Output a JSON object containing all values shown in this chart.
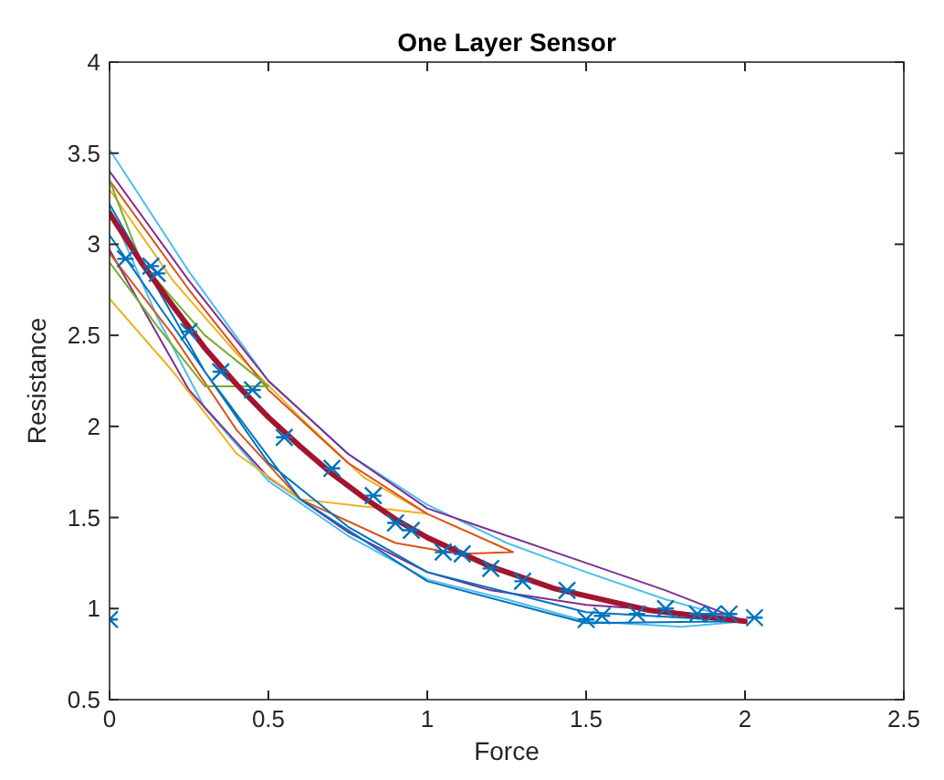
{
  "chart_data": {
    "type": "line",
    "title": "One Layer Sensor",
    "xlabel": "Force",
    "ylabel": "Resistance",
    "xlim": [
      0,
      2.5
    ],
    "xticks": [
      0,
      0.5,
      1,
      1.5,
      2,
      2.5
    ],
    "ylim": [
      0.5,
      4
    ],
    "yticks": [
      0.5,
      1,
      1.5,
      2,
      2.5,
      3,
      3.5,
      4
    ],
    "grid": false,
    "series": [
      {
        "color": "#4dbeee",
        "x": [
          0,
          0.25,
          0.5,
          0.75,
          1,
          1.25,
          1.5,
          1.75,
          2,
          1.8,
          1.5,
          1.25,
          1,
          0.75,
          0.5,
          0.3,
          0.15,
          0
        ],
        "values": [
          3.52,
          2.85,
          2.25,
          1.85,
          1.57,
          1.36,
          1.2,
          1.05,
          0.93,
          0.9,
          0.93,
          1.05,
          1.16,
          1.4,
          1.7,
          2.1,
          2.6,
          3.2
        ]
      },
      {
        "color": "#7e2f8e",
        "x": [
          0,
          0.25,
          0.5,
          0.75,
          1,
          1.5,
          1.75,
          2,
          1.75,
          1.5,
          1.2,
          1,
          0.75,
          0.5,
          0.25,
          0
        ],
        "values": [
          3.4,
          2.8,
          2.25,
          1.85,
          1.55,
          1.25,
          1.1,
          0.93,
          0.99,
          1.02,
          1.1,
          1.2,
          1.42,
          1.72,
          2.2,
          2.97
        ]
      },
      {
        "color": "#edb120",
        "x": [
          0,
          0.2,
          0.4,
          0.6,
          0.8,
          1,
          0.8,
          0.6,
          0.4,
          0.2,
          0
        ],
        "values": [
          3.3,
          2.8,
          2.4,
          2.05,
          1.72,
          1.52,
          1.56,
          1.6,
          1.85,
          2.3,
          2.7
        ]
      },
      {
        "color": "#d95319",
        "x": [
          0,
          0.25,
          0.5,
          0.75,
          1,
          1.27,
          1.1,
          0.9,
          0.6,
          0.4,
          0.2,
          0
        ],
        "values": [
          3.35,
          2.75,
          2.2,
          1.8,
          1.52,
          1.31,
          1.3,
          1.36,
          1.6,
          1.98,
          2.5,
          2.95
        ]
      },
      {
        "color": "#77ac30",
        "x": [
          0,
          0.1,
          0.3,
          0.5,
          0.3,
          0.15,
          0
        ],
        "values": [
          3.35,
          2.9,
          2.5,
          2.22,
          2.22,
          2.55,
          2.9
        ]
      },
      {
        "color": "#0072bd",
        "x": [
          0,
          0.3,
          0.5,
          0.75,
          1,
          1.5,
          2,
          1.5,
          1,
          0.6,
          0.3,
          0
        ],
        "values": [
          3.05,
          2.3,
          1.8,
          1.45,
          1.2,
          0.98,
          0.93,
          0.92,
          1.15,
          1.6,
          2.3,
          3.22
        ]
      },
      {
        "color": "#a2142f",
        "x": [
          0,
          0.1,
          0.2,
          0.3,
          0.4,
          0.5,
          0.6,
          0.7,
          0.8,
          0.9,
          1,
          1.1,
          1.2,
          1.3,
          1.4,
          1.5,
          1.6,
          1.7,
          1.8,
          1.9,
          2
        ],
        "values": [
          3.17,
          2.9,
          2.66,
          2.43,
          2.23,
          2.05,
          1.89,
          1.74,
          1.61,
          1.49,
          1.39,
          1.31,
          1.23,
          1.17,
          1.11,
          1.07,
          1.03,
          0.99,
          0.97,
          0.95,
          0.93
        ]
      },
      {
        "type": "scatter",
        "marker": "cross",
        "color": "#0072bd",
        "x": [
          0,
          0.05,
          0.13,
          0.15,
          0.25,
          0.35,
          0.45,
          0.55,
          0.7,
          0.83,
          0.9,
          0.95,
          1.05,
          1.11,
          1.2,
          1.3,
          1.44,
          1.5,
          1.55,
          1.66,
          1.75,
          1.85,
          1.9,
          1.95,
          2.03
        ],
        "values": [
          0.94,
          2.92,
          2.88,
          2.84,
          2.52,
          2.3,
          2.2,
          1.94,
          1.77,
          1.62,
          1.47,
          1.43,
          1.31,
          1.3,
          1.22,
          1.15,
          1.1,
          0.94,
          0.96,
          0.97,
          1,
          0.97,
          0.97,
          0.97,
          0.95
        ]
      }
    ]
  }
}
